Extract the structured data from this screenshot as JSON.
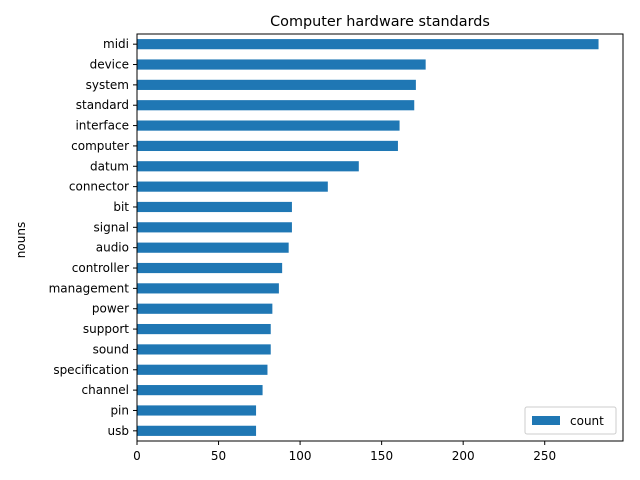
{
  "chart_data": {
    "type": "bar",
    "orientation": "horizontal",
    "title": "Computer hardware standards",
    "xlabel": "",
    "ylabel": "nouns",
    "categories": [
      "midi",
      "device",
      "system",
      "standard",
      "interface",
      "computer",
      "datum",
      "connector",
      "bit",
      "signal",
      "audio",
      "controller",
      "management",
      "power",
      "support",
      "sound",
      "specification",
      "channel",
      "pin",
      "usb"
    ],
    "series": [
      {
        "name": "count",
        "color": "#1f77b4",
        "values": [
          283,
          177,
          171,
          170,
          161,
          160,
          136,
          117,
          95,
          95,
          93,
          89,
          87,
          83,
          82,
          82,
          80,
          77,
          73,
          73
        ]
      }
    ],
    "xlim": [
      0,
      298
    ],
    "xticks": [
      0,
      50,
      100,
      150,
      200,
      250
    ],
    "grid": false,
    "legend_position": "bottom-right"
  }
}
